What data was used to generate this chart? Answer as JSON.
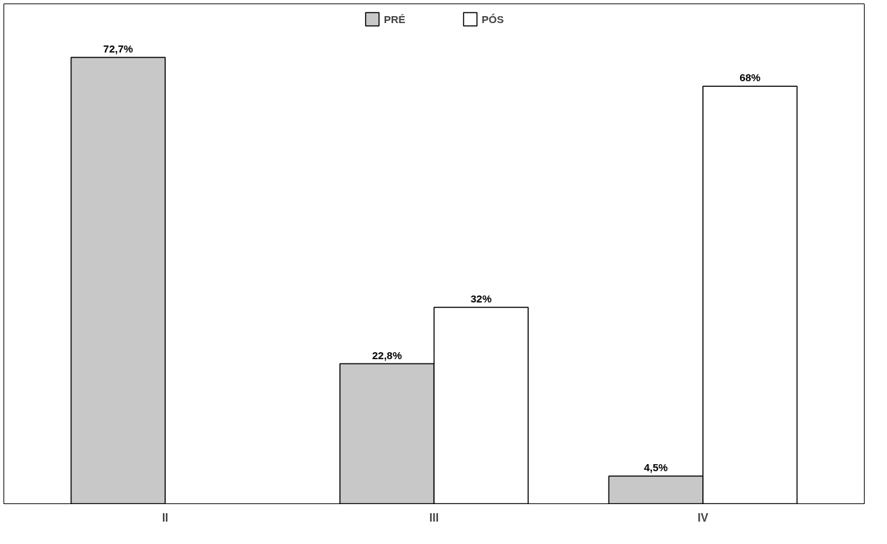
{
  "chart_data": {
    "type": "bar",
    "categories": [
      "II",
      "III",
      "IV"
    ],
    "series": [
      {
        "name": "PRÉ",
        "color": "#c8c8c8",
        "values": [
          72.7,
          22.8,
          4.5
        ],
        "value_labels": [
          "72,7%",
          "22,8%",
          "4,5%"
        ]
      },
      {
        "name": "PÓS",
        "color": "#ffffff",
        "values": [
          0,
          32,
          68
        ],
        "value_labels": [
          null,
          "32%",
          "68%"
        ]
      }
    ],
    "legend": "top",
    "grid": false,
    "tick_labels": "x"
  }
}
